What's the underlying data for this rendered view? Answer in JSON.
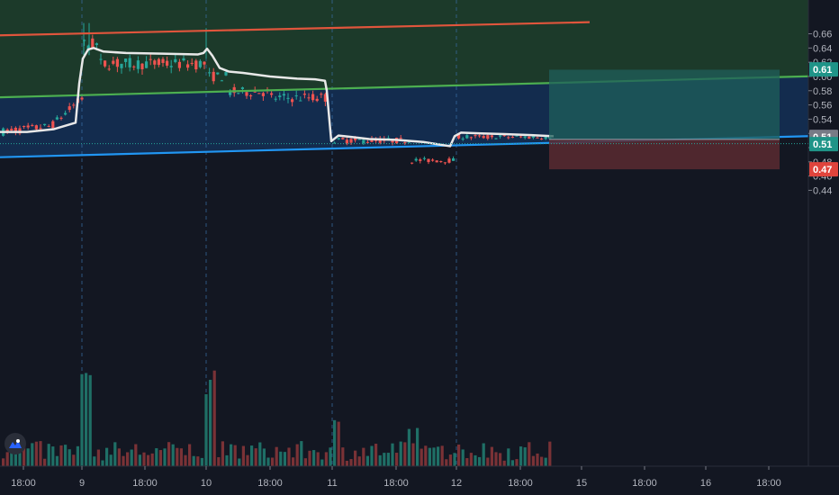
{
  "chart_data": {
    "type": "candlestick",
    "x_ticks": [
      "18:00",
      "9",
      "18:00",
      "10",
      "18:00",
      "11",
      "18:00",
      "12",
      "18:00",
      "15",
      "18:00",
      "16",
      "18:00"
    ],
    "y_ticks": [
      "0.66",
      "0.64",
      "0.62",
      "0.60",
      "0.58",
      "0.56",
      "0.54",
      "0.52",
      "0.50",
      "0.48",
      "0.46",
      "0.44"
    ],
    "ylim": [
      0.425,
      0.675
    ],
    "price_tags": [
      {
        "label": "0.61",
        "value": 0.61,
        "color": "#1f9488"
      },
      {
        "label": "0.51",
        "value": 0.515,
        "color": "#787b86"
      },
      {
        "label": "0.51",
        "value": 0.505,
        "color": "#1f9488"
      },
      {
        "label": "0.47",
        "value": 0.4695,
        "color": "#e0443c"
      }
    ],
    "trend_lines": [
      {
        "name": "upper",
        "color": "#e0553c",
        "x0": 0,
        "y0": 0.6578,
        "x1": 655,
        "y1": 0.6763
      },
      {
        "name": "middle",
        "color": "#4caf50",
        "x0": 0,
        "y0": 0.5707,
        "x1": 900,
        "y1": 0.6003
      },
      {
        "name": "lower",
        "color": "#2196f3",
        "x0": 0,
        "y0": 0.4865,
        "x1": 900,
        "y1": 0.5162
      }
    ],
    "vwap_color": "#e8e8e8",
    "vwap": [
      [
        0,
        0.522
      ],
      [
        30,
        0.522
      ],
      [
        60,
        0.526
      ],
      [
        84,
        0.535
      ],
      [
        88,
        0.59
      ],
      [
        92,
        0.625
      ],
      [
        98,
        0.638
      ],
      [
        104,
        0.64
      ],
      [
        115,
        0.635
      ],
      [
        140,
        0.633
      ],
      [
        180,
        0.632
      ],
      [
        220,
        0.631
      ],
      [
        226,
        0.633
      ],
      [
        230,
        0.639
      ],
      [
        236,
        0.629
      ],
      [
        244,
        0.612
      ],
      [
        254,
        0.607
      ],
      [
        270,
        0.605
      ],
      [
        300,
        0.6
      ],
      [
        330,
        0.597
      ],
      [
        350,
        0.596
      ],
      [
        361,
        0.594
      ],
      [
        363,
        0.58
      ],
      [
        368,
        0.509
      ],
      [
        376,
        0.517
      ],
      [
        390,
        0.515
      ],
      [
        410,
        0.512
      ],
      [
        440,
        0.511
      ],
      [
        470,
        0.508
      ],
      [
        490,
        0.504
      ],
      [
        500,
        0.502
      ],
      [
        505,
        0.516
      ],
      [
        512,
        0.521
      ],
      [
        535,
        0.52
      ],
      [
        560,
        0.519
      ],
      [
        590,
        0.5175
      ],
      [
        615,
        0.516
      ]
    ],
    "trade_box": {
      "entry": 0.5115,
      "target": 0.6095,
      "stop": 0.4695,
      "x_start": 610,
      "x_end": 866,
      "profit_color": "#1f5f5b",
      "loss_color": "#5b2a30"
    },
    "session_lines": [
      91,
      229,
      369,
      507
    ],
    "colors": {
      "up": "#26a69a",
      "down": "#ef5350",
      "vol_up": "#1f6f66",
      "vol_down": "#7a3236",
      "zone_top": "#1c3a2a",
      "zone_mid": "#132c4e",
      "bg": "#131722",
      "grid_dash": "#3a6fa8"
    }
  },
  "branding": {
    "logo_icon": "tradingview-logo-icon"
  }
}
